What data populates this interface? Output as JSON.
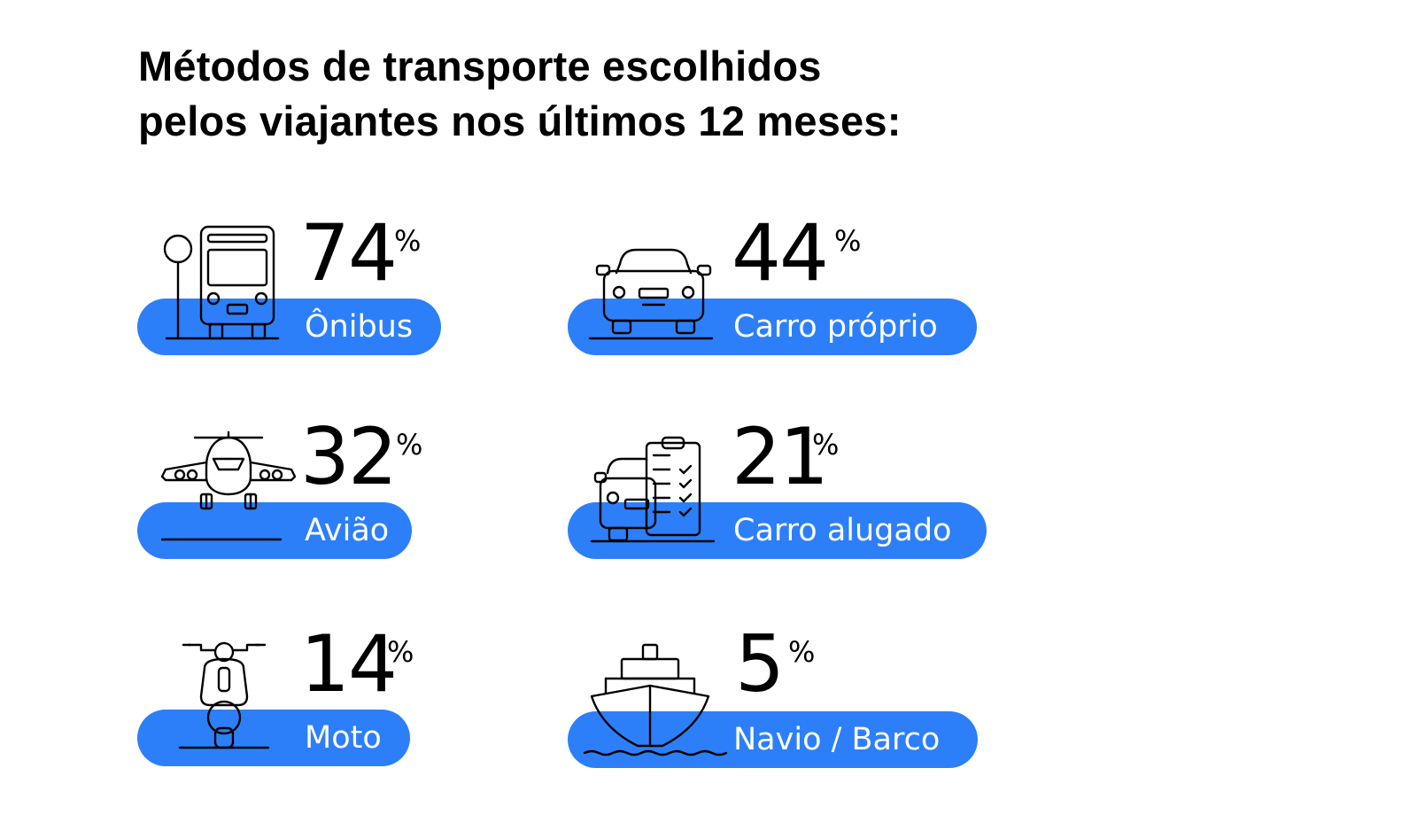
{
  "title": {
    "line1": "Métodos de transporte escolhidos",
    "line2": "pelos viajantes nos últimos 12 meses:"
  },
  "accent_color": "#2d7ff9",
  "percent_symbol": "%",
  "stats": [
    {
      "value": "74",
      "label": "Ônibus",
      "icon": "bus-icon"
    },
    {
      "value": "44",
      "label": "Carro próprio",
      "icon": "car-icon"
    },
    {
      "value": "32",
      "label": "Avião",
      "icon": "airplane-icon"
    },
    {
      "value": "21",
      "label": "Carro alugado",
      "icon": "rental-car-icon"
    },
    {
      "value": "14",
      "label": "Moto",
      "icon": "scooter-icon"
    },
    {
      "value": "5",
      "label": "Navio / Barco",
      "icon": "ship-icon"
    }
  ]
}
